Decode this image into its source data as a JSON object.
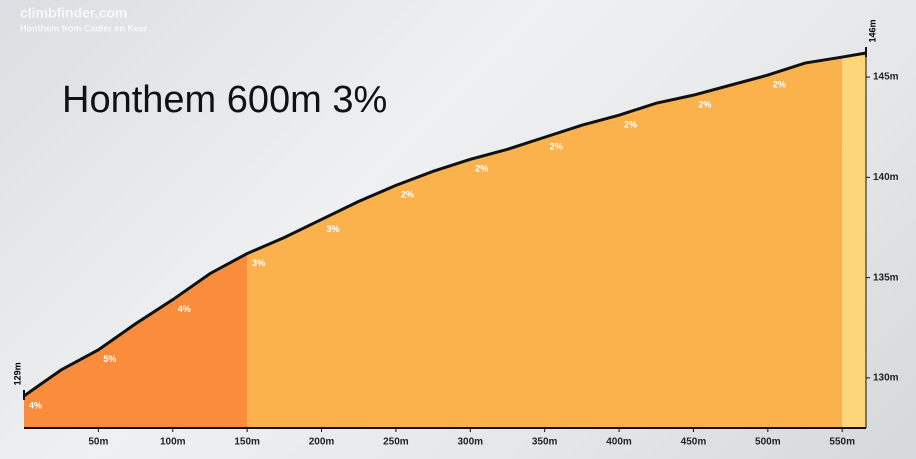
{
  "chart_data": {
    "type": "area",
    "title": "Honthem 600m 3%",
    "site": "climbfinder.com",
    "subtitle": "Honthem from Cadier en Keer",
    "start_label": "129m",
    "end_label": "146m",
    "x": [
      0,
      25,
      50,
      75,
      100,
      125,
      150,
      175,
      200,
      225,
      250,
      275,
      300,
      325,
      350,
      375,
      400,
      425,
      450,
      475,
      500,
      525,
      550,
      566
    ],
    "series": [
      {
        "color": "#111111",
        "values": [
          129.1,
          130.4,
          131.4,
          132.7,
          133.9,
          135.2,
          136.2,
          137.0,
          137.9,
          138.8,
          139.6,
          140.3,
          140.9,
          141.4,
          142.0,
          142.6,
          143.1,
          143.7,
          144.1,
          144.6,
          145.1,
          145.7,
          146.0,
          146.2
        ]
      }
    ],
    "zones": [
      {
        "from": 0,
        "to": 150,
        "color": "#f98d3b"
      },
      {
        "from": 150,
        "to": 550,
        "color": "#fcb24c"
      },
      {
        "from": 550,
        "to": 566,
        "color": "#fdd67c"
      }
    ],
    "gradients": {
      "x": [
        0,
        50,
        100,
        150,
        200,
        250,
        300,
        350,
        400,
        450,
        500
      ],
      "labels": [
        "4%",
        "5%",
        "4%",
        "3%",
        "3%",
        "2%",
        "2%",
        "2%",
        "2%",
        "2%",
        "2%"
      ]
    },
    "xlim": [
      0,
      566
    ],
    "ylim": [
      127.5,
      146.85
    ],
    "xticks": [
      {
        "value": 50,
        "label": "50m"
      },
      {
        "value": 100,
        "label": "100m"
      },
      {
        "value": 150,
        "label": "150m"
      },
      {
        "value": 200,
        "label": "200m"
      },
      {
        "value": 250,
        "label": "250m"
      },
      {
        "value": 300,
        "label": "300m"
      },
      {
        "value": 350,
        "label": "350m"
      },
      {
        "value": 400,
        "label": "400m"
      },
      {
        "value": 450,
        "label": "450m"
      },
      {
        "value": 500,
        "label": "500m"
      },
      {
        "value": 550,
        "label": "550m"
      }
    ],
    "yticks": [
      {
        "value": 130,
        "label": "130m"
      },
      {
        "value": 135,
        "label": "135m"
      },
      {
        "value": 140,
        "label": "140m"
      },
      {
        "value": 145,
        "label": "145m"
      }
    ]
  }
}
